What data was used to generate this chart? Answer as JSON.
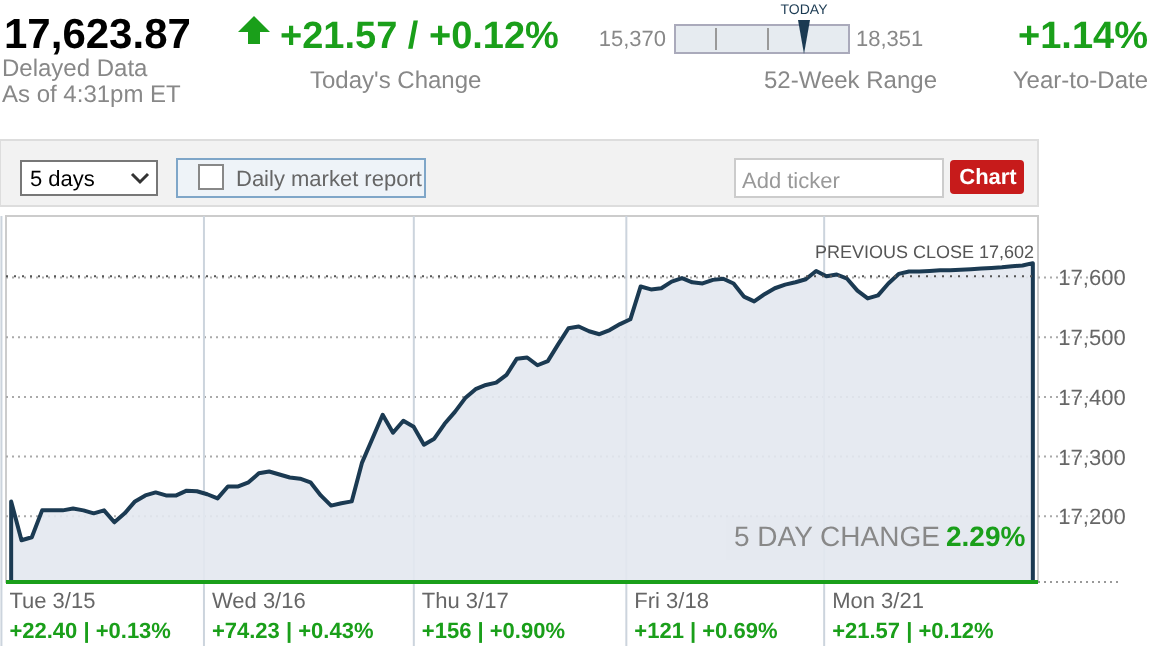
{
  "chart_data": {
    "type": "area",
    "title": "17,623.87",
    "annotations": [
      "Delayed Data",
      "As of 4:31pm ET",
      "+21.57 / +0.12%",
      "Today's Change",
      "15,370",
      "18,351",
      "TODAY",
      "52-Week Range",
      "+1.14%",
      "Year-to-Date",
      "5 days",
      "Daily market report",
      "Add ticker",
      "Chart",
      "5 DAY CHANGE",
      "2.29%",
      "+22.40 | +0.13%",
      "+74.23 | +0.43%",
      "+156 | +0.90%",
      "+121 | +0.69%",
      "+21.57 | +0.12%"
    ],
    "categories": [
      null,
      null,
      null,
      null,
      "Tue 3/15",
      null,
      null,
      null,
      null,
      null,
      null,
      null,
      null,
      null,
      null,
      null,
      null,
      null,
      null,
      null,
      null,
      null,
      null,
      null,
      "Wed 3/16",
      null,
      null,
      null,
      null,
      null,
      null,
      null,
      null,
      null,
      null,
      null,
      null,
      null,
      null,
      null,
      null,
      null,
      null,
      null,
      "Thu 3/17",
      null,
      null,
      null,
      null,
      null,
      null,
      null,
      null,
      null,
      null,
      null,
      null,
      null,
      null,
      null,
      null,
      null,
      null,
      null,
      "Fri 3/18",
      null,
      null,
      null,
      null,
      null,
      null,
      null,
      null,
      null,
      null,
      null,
      null,
      null,
      null,
      null,
      null,
      null,
      null,
      null,
      "Mon 3/21",
      null,
      null,
      null,
      null,
      null,
      null,
      null,
      null,
      null,
      null,
      null,
      null,
      null,
      null,
      null
    ],
    "series": [
      {
        "color": "#1b3a52",
        "values": [
          17225,
          17160,
          17165,
          17210,
          17210,
          17210,
          17213,
          17210,
          17205,
          17210,
          17190,
          17205,
          17225,
          17235,
          17240,
          17235,
          17235,
          17243,
          17242,
          17237,
          17230,
          17250,
          17250,
          17257,
          17272,
          17275,
          17270,
          17265,
          17263,
          17257,
          17235,
          17218,
          17222,
          17225,
          17290,
          17330,
          17370,
          17340,
          17360,
          17350,
          17320,
          17330,
          17355,
          17375,
          17398,
          17413,
          17420,
          17424,
          17437,
          17464,
          17466,
          17453,
          17460,
          17488,
          17515,
          17518,
          17510,
          17505,
          17512,
          17522,
          17530,
          17585,
          17580,
          17582,
          17593,
          17599,
          17592,
          17590,
          17596,
          17598,
          17590,
          17568,
          17560,
          17572,
          17582,
          17588,
          17592,
          17597,
          17611,
          17602,
          17605,
          17598,
          17578,
          17565,
          17570,
          17590,
          17606,
          17610,
          17610,
          17611,
          17612,
          17612,
          17613,
          17614,
          17615,
          17616,
          17617,
          17619,
          17620,
          17624
        ]
      }
    ],
    "ylim": [
      17090,
      17703
    ],
    "yticks": [
      {
        "value": 17200,
        "label": "17,200"
      },
      {
        "value": 17300,
        "label": "17,300"
      },
      {
        "value": 17400,
        "label": "17,400"
      },
      {
        "value": 17500,
        "label": "17,500"
      },
      {
        "value": 17600,
        "label": "17,600"
      }
    ],
    "ref_lines": [
      {
        "axis": "y",
        "value": 17602,
        "label": "PREVIOUS CLOSE 17,602",
        "line_style": "dotted",
        "color": "#555555"
      }
    ],
    "grid": true,
    "line_style": "solid"
  }
}
